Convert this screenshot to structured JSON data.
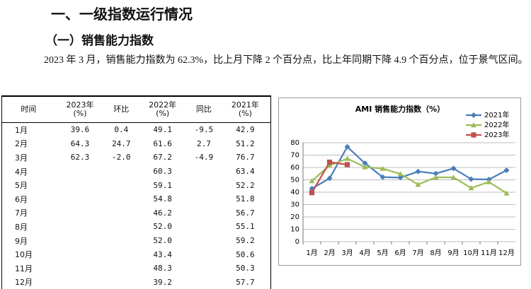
{
  "heading": "一、一级指数运行情况",
  "subheading": "（一）销售能力指数",
  "paragraph": "2023 年 3 月，销售能力指数为 62.3%，比上月下降 2 个百分点，比上年同期下降 4.9 个百分点，位于景气区间。",
  "table": {
    "headers": [
      "时间",
      "2023年\n(%)",
      "环比",
      "2022年\n(%)",
      "同比",
      "2021年\n(%)"
    ],
    "rows": [
      [
        "1月",
        "39.6",
        "0.4",
        "49.1",
        "-9.5",
        "42.9"
      ],
      [
        "2月",
        "64.3",
        "24.7",
        "61.6",
        "2.7",
        "51.2"
      ],
      [
        "3月",
        "62.3",
        "-2.0",
        "67.2",
        "-4.9",
        "76.7"
      ],
      [
        "4月",
        null,
        null,
        "60.3",
        null,
        "63.4"
      ],
      [
        "5月",
        null,
        null,
        "59.1",
        null,
        "52.2"
      ],
      [
        "6月",
        null,
        null,
        "54.8",
        null,
        "51.8"
      ],
      [
        "7月",
        null,
        null,
        "46.2",
        null,
        "56.7"
      ],
      [
        "8月",
        null,
        null,
        "52.0",
        null,
        "55.1"
      ],
      [
        "9月",
        null,
        null,
        "52.0",
        null,
        "59.2"
      ],
      [
        "10月",
        null,
        null,
        "43.4",
        null,
        "50.6"
      ],
      [
        "11月",
        null,
        null,
        "48.3",
        null,
        "50.3"
      ],
      [
        "12月",
        null,
        null,
        "39.2",
        null,
        "57.7"
      ]
    ]
  },
  "chart_data": {
    "type": "line",
    "title": "AMI 销售能力指数（%）",
    "categories": [
      "1月",
      "2月",
      "3月",
      "4月",
      "5月",
      "6月",
      "7月",
      "8月",
      "9月",
      "10月",
      "11月",
      "12月"
    ],
    "series": [
      {
        "name": "2021年",
        "color": "#4a7ebb",
        "marker": "diamond",
        "values": [
          42.9,
          51.2,
          76.7,
          63.4,
          52.2,
          51.8,
          56.7,
          55.1,
          59.2,
          50.6,
          50.3,
          57.7
        ]
      },
      {
        "name": "2022年",
        "color": "#9bbb59",
        "marker": "triangle",
        "values": [
          49.1,
          61.6,
          67.2,
          60.3,
          59.1,
          54.8,
          46.2,
          52.0,
          52.0,
          43.4,
          48.3,
          39.2
        ]
      },
      {
        "name": "2023年",
        "color": "#c0504d",
        "marker": "square",
        "values": [
          39.6,
          64.3,
          62.3,
          null,
          null,
          null,
          null,
          null,
          null,
          null,
          null,
          null
        ]
      }
    ],
    "ylim": [
      0,
      80
    ],
    "yticks": [
      0,
      10,
      20,
      30,
      40,
      50,
      60,
      70,
      80
    ],
    "grid": true,
    "legend": "top-right"
  }
}
